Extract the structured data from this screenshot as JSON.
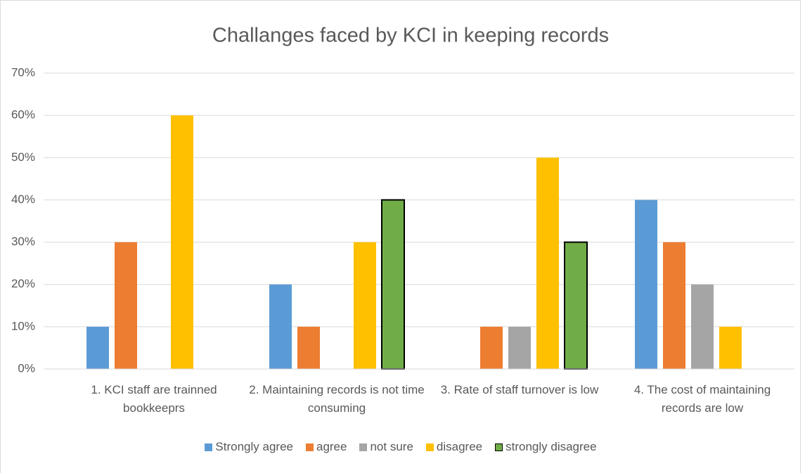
{
  "chart_data": {
    "type": "bar",
    "title": "Challanges  faced by KCI in keeping records",
    "categories": [
      "1. KCI staff are trainned bookkeeprs",
      "2. Maintaining records is not time consuming",
      "3. Rate of staff turnover is low",
      "4. The cost of maintaining records are low"
    ],
    "series": [
      {
        "name": "Strongly agree",
        "color": "#5b9bd5",
        "values": [
          10,
          20,
          0,
          40
        ]
      },
      {
        "name": "agree",
        "color": "#ed7d31",
        "values": [
          30,
          10,
          10,
          30
        ]
      },
      {
        "name": "not sure",
        "color": "#a5a5a5",
        "values": [
          0,
          0,
          10,
          20
        ]
      },
      {
        "name": "disagree",
        "color": "#ffc000",
        "values": [
          60,
          30,
          50,
          10
        ]
      },
      {
        "name": "strongly disagree",
        "color": "#70ad47",
        "edgecolor": "#000000",
        "values": [
          0,
          40,
          30,
          0
        ]
      }
    ],
    "ylim": [
      0,
      70
    ],
    "yticks": [
      {
        "value": 0,
        "label": "0%"
      },
      {
        "value": 10,
        "label": "10%"
      },
      {
        "value": 20,
        "label": "20%"
      },
      {
        "value": 30,
        "label": "30%"
      },
      {
        "value": 40,
        "label": "40%"
      },
      {
        "value": 50,
        "label": "50%"
      },
      {
        "value": 60,
        "label": "60%"
      },
      {
        "value": 70,
        "label": "70%"
      }
    ],
    "grid": true,
    "legend": "bottom"
  }
}
